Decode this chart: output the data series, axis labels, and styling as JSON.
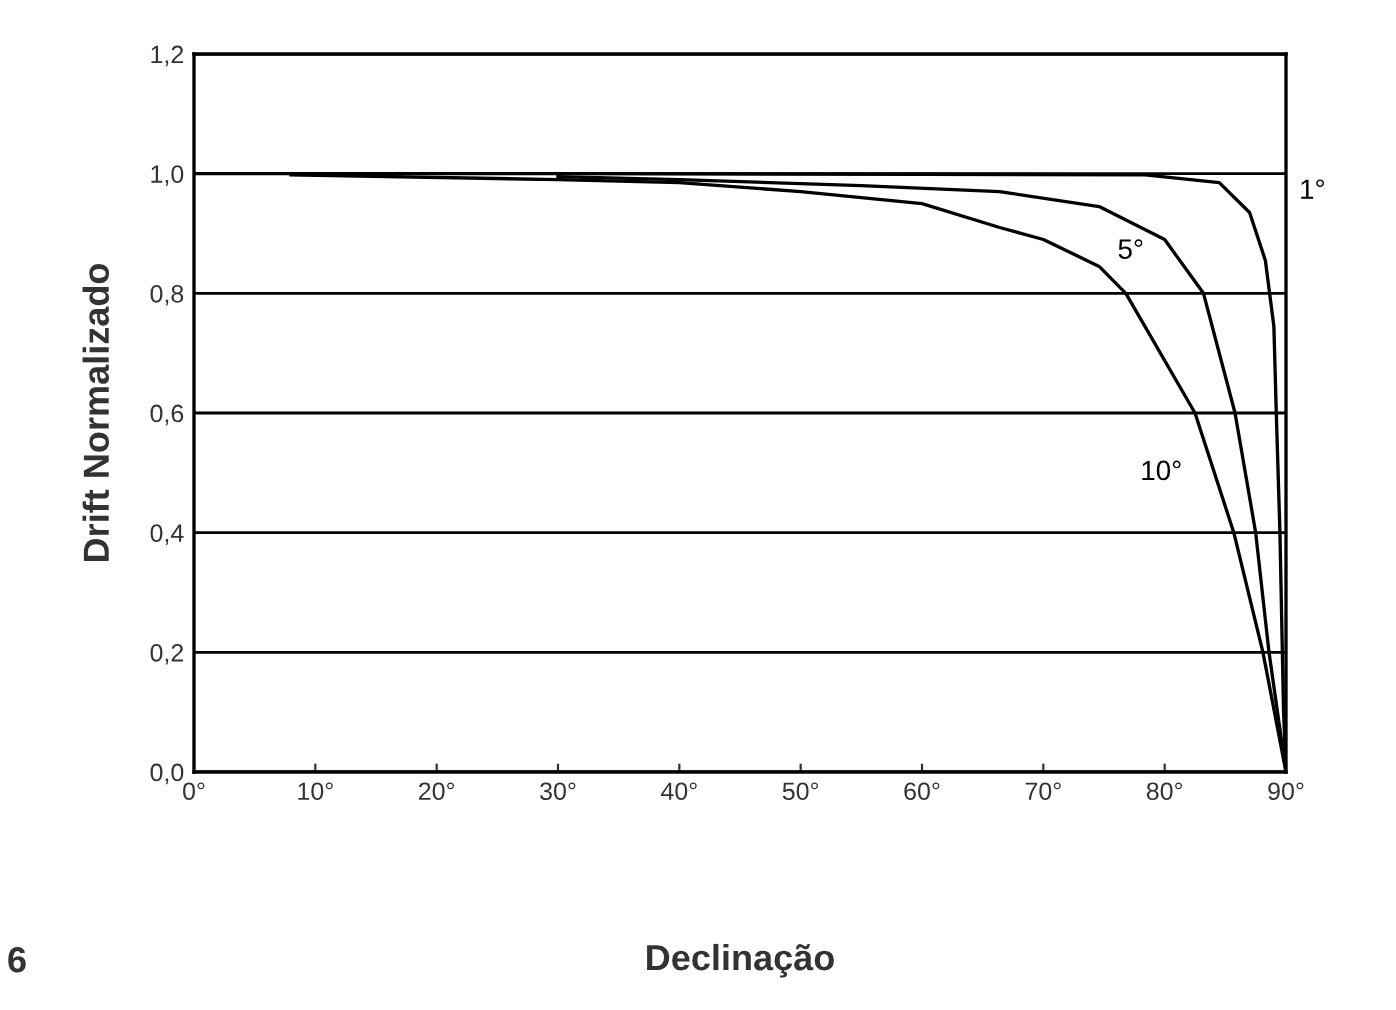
{
  "chart_data": {
    "type": "line",
    "xlabel": "Declinação",
    "ylabel": "Drift Normalizado",
    "xlim": [
      0,
      90
    ],
    "ylim": [
      0,
      1.2
    ],
    "xticks": [
      {
        "value": 0,
        "label": "0°"
      },
      {
        "value": 10,
        "label": "10°"
      },
      {
        "value": 20,
        "label": "20°"
      },
      {
        "value": 30,
        "label": "30°"
      },
      {
        "value": 40,
        "label": "40°"
      },
      {
        "value": 50,
        "label": "50°"
      },
      {
        "value": 60,
        "label": "60°"
      },
      {
        "value": 70,
        "label": "70°"
      },
      {
        "value": 80,
        "label": "80°"
      },
      {
        "value": 90,
        "label": "90°"
      }
    ],
    "yticks": [
      {
        "value": 0,
        "label": "0,0"
      },
      {
        "value": 0.2,
        "label": "0,2"
      },
      {
        "value": 0.4,
        "label": "0,4"
      },
      {
        "value": 0.6,
        "label": "0,6"
      },
      {
        "value": 0.8,
        "label": "0,8"
      },
      {
        "value": 1.0,
        "label": "1,0"
      },
      {
        "value": 1.2,
        "label": "1,2"
      }
    ],
    "grid": "y",
    "marker": "none",
    "line_style": "solid",
    "annotations": [
      "6"
    ],
    "series": [
      {
        "name": "1°",
        "color": "#000000",
        "x": [
          0,
          30,
          60,
          78.4,
          84.5,
          87,
          88.3,
          89,
          89.2,
          89.5,
          89.8,
          90
        ],
        "values": [
          1.0,
          1.0,
          0.999,
          0.998,
          0.985,
          0.935,
          0.855,
          0.745,
          0.6,
          0.4,
          0.1,
          0
        ]
      },
      {
        "name": "5°",
        "color": "#000000",
        "x": [
          30,
          40,
          55,
          66.4,
          74.6,
          80,
          83.2,
          85.8,
          87.5,
          88.6,
          90
        ],
        "values": [
          0.995,
          0.99,
          0.98,
          0.97,
          0.945,
          0.89,
          0.8,
          0.6,
          0.4,
          0.2,
          0
        ]
      },
      {
        "name": "10°",
        "color": "#000000",
        "x": [
          8,
          30,
          40,
          50,
          60,
          66.4,
          70,
          74.6,
          76.8,
          82.5,
          85.7,
          88.1,
          90
        ],
        "values": [
          0.998,
          0.99,
          0.985,
          0.97,
          0.95,
          0.91,
          0.89,
          0.845,
          0.8,
          0.6,
          0.4,
          0.2,
          0
        ]
      }
    ]
  }
}
